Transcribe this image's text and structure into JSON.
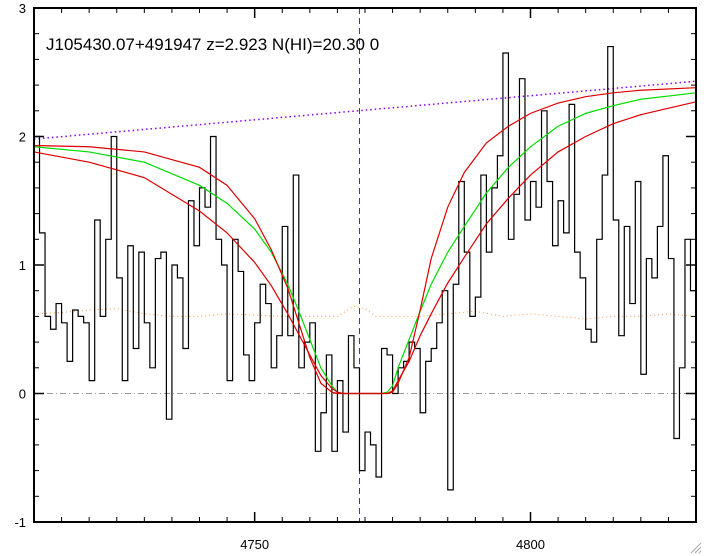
{
  "chart_data": {
    "type": "line",
    "title": "J105430.07+491947 z=2.923 N(HI)=20.30 0",
    "xlabel": "",
    "ylabel": "",
    "xlim": [
      4710,
      4830
    ],
    "ylim": [
      -1,
      3
    ],
    "x_ticks": [
      4750,
      4800
    ],
    "y_ticks": [
      -1,
      0,
      1,
      2,
      3
    ],
    "grid": false,
    "line_center": 4769,
    "colors": {
      "flux": "#000000",
      "model": "#00dd00",
      "model_bounds": "#dd0000",
      "continuum": "#8800ff",
      "error": "#ff9933",
      "zero": "#999999",
      "center": "#3333cc"
    },
    "series": [
      {
        "style": "histogram",
        "x": [
          4710,
          4711,
          4712,
          4713,
          4714,
          4715,
          4716,
          4717,
          4718,
          4719,
          4720,
          4721,
          4722,
          4723,
          4724,
          4725,
          4726,
          4727,
          4728,
          4729,
          4730,
          4731,
          4732,
          4733,
          4734,
          4735,
          4736,
          4737,
          4738,
          4739,
          4740,
          4741,
          4742,
          4743,
          4744,
          4745,
          4746,
          4747,
          4748,
          4749,
          4750,
          4751,
          4752,
          4753,
          4754,
          4755,
          4756,
          4757,
          4758,
          4759,
          4760,
          4761,
          4762,
          4763,
          4764,
          4765,
          4766,
          4767,
          4768,
          4769,
          4770,
          4771,
          4772,
          4773,
          4774,
          4775,
          4776,
          4777,
          4778,
          4779,
          4780,
          4781,
          4782,
          4783,
          4784,
          4785,
          4786,
          4787,
          4788,
          4789,
          4790,
          4791,
          4792,
          4793,
          4794,
          4795,
          4796,
          4797,
          4798,
          4799,
          4800,
          4801,
          4802,
          4803,
          4804,
          4805,
          4806,
          4807,
          4808,
          4809,
          4810,
          4811,
          4812,
          4813,
          4814,
          4815,
          4816,
          4817,
          4818,
          4819,
          4820,
          4821,
          4822,
          4823,
          4824,
          4825,
          4826,
          4827,
          4828,
          4829
        ],
        "y": [
          2.0,
          1.25,
          0.6,
          0.5,
          0.7,
          0.55,
          0.25,
          0.65,
          0.6,
          0.55,
          0.1,
          1.35,
          0.6,
          1.2,
          2.0,
          0.9,
          0.1,
          1.15,
          0.35,
          1.1,
          0.55,
          0.2,
          1.05,
          1.1,
          -0.2,
          1.0,
          0.9,
          0.35,
          1.5,
          1.15,
          1.6,
          1.45,
          2.0,
          1.2,
          1.0,
          0.1,
          1.2,
          0.95,
          0.3,
          0.1,
          0.55,
          0.85,
          0.7,
          0.2,
          0.45,
          1.3,
          0.45,
          1.7,
          0.2,
          0.4,
          0.55,
          -0.45,
          -0.15,
          0.3,
          -0.45,
          0.1,
          -0.3,
          0.45,
          0.2,
          -0.6,
          -0.3,
          -0.4,
          -0.65,
          0.35,
          0.3,
          0.0,
          0.2,
          0.25,
          0.4,
          0.35,
          -0.15,
          0.25,
          0.35,
          0.55,
          0.8,
          -0.75,
          0.85,
          1.65,
          1.1,
          0.6,
          0.75,
          1.7,
          1.1,
          1.6,
          1.85,
          2.65,
          1.2,
          1.55,
          2.45,
          1.35,
          1.65,
          1.45,
          2.2,
          1.65,
          1.15,
          1.5,
          1.25,
          2.25,
          1.1,
          0.9,
          0.5,
          0.4,
          1.2,
          1.7,
          2.7,
          1.35,
          0.45,
          1.3,
          0.7,
          1.65,
          0.15,
          1.05,
          0.9,
          1.3,
          1.85,
          1.05,
          -0.35,
          0.2,
          1.2,
          0.8
        ]
      },
      {
        "style": "line",
        "x": [
          4710,
          4720,
          4730,
          4740,
          4745,
          4750,
          4753,
          4756,
          4758,
          4760,
          4762,
          4764,
          4765,
          4766,
          4767,
          4768,
          4769,
          4770,
          4771,
          4772,
          4773,
          4774,
          4775,
          4776,
          4778,
          4780,
          4782,
          4785,
          4788,
          4792,
          4796,
          4800,
          4805,
          4810,
          4815,
          4820,
          4830
        ],
        "y": [
          1.92,
          1.88,
          1.8,
          1.62,
          1.48,
          1.28,
          1.1,
          0.85,
          0.64,
          0.42,
          0.2,
          0.06,
          0.01,
          0.0,
          0.0,
          0.0,
          0.0,
          0.0,
          0.0,
          0.0,
          0.0,
          0.01,
          0.06,
          0.2,
          0.42,
          0.64,
          0.85,
          1.1,
          1.3,
          1.56,
          1.76,
          1.92,
          2.08,
          2.18,
          2.24,
          2.29,
          2.34
        ]
      },
      {
        "style": "line",
        "x": [
          4710,
          4720,
          4730,
          4740,
          4745,
          4750,
          4753,
          4756,
          4758,
          4760,
          4762,
          4764,
          4765,
          4766,
          4767,
          4768,
          4769,
          4770,
          4771,
          4772,
          4773,
          4774,
          4775,
          4776,
          4778,
          4780,
          4782,
          4785,
          4788,
          4792,
          4796,
          4800,
          4805,
          4810,
          4815,
          4820,
          4830
        ],
        "y": [
          1.93,
          1.92,
          1.88,
          1.76,
          1.62,
          1.36,
          1.12,
          0.82,
          0.55,
          0.28,
          0.08,
          0.01,
          0.0,
          0.0,
          0.0,
          0.0,
          0.0,
          0.0,
          0.0,
          0.0,
          0.0,
          0.0,
          0.01,
          0.08,
          0.28,
          0.65,
          1.05,
          1.45,
          1.72,
          1.95,
          2.08,
          2.18,
          2.26,
          2.31,
          2.34,
          2.36,
          2.38
        ]
      },
      {
        "style": "line",
        "x": [
          4710,
          4720,
          4730,
          4740,
          4745,
          4750,
          4753,
          4756,
          4758,
          4760,
          4762,
          4764,
          4765,
          4766,
          4767,
          4768,
          4769,
          4770,
          4771,
          4772,
          4773,
          4774,
          4775,
          4776,
          4778,
          4780,
          4782,
          4785,
          4788,
          4792,
          4796,
          4800,
          4805,
          4810,
          4815,
          4820,
          4830
        ],
        "y": [
          1.88,
          1.8,
          1.68,
          1.42,
          1.25,
          1.02,
          0.84,
          0.62,
          0.46,
          0.3,
          0.14,
          0.04,
          0.01,
          0.0,
          0.0,
          0.0,
          0.0,
          0.0,
          0.0,
          0.0,
          0.0,
          0.0,
          0.02,
          0.1,
          0.25,
          0.45,
          0.62,
          0.86,
          1.06,
          1.32,
          1.52,
          1.7,
          1.88,
          2.0,
          2.1,
          2.17,
          2.27
        ]
      },
      {
        "style": "dotted",
        "x": [
          4710,
          4830
        ],
        "y": [
          1.98,
          2.43
        ]
      },
      {
        "style": "dotted",
        "x": [
          4710,
          4715,
          4720,
          4725,
          4730,
          4735,
          4740,
          4745,
          4750,
          4755,
          4760,
          4765,
          4768,
          4770,
          4772,
          4775,
          4780,
          4785,
          4790,
          4795,
          4800,
          4805,
          4810,
          4815,
          4820,
          4825,
          4830
        ],
        "y": [
          0.62,
          0.63,
          0.65,
          0.66,
          0.62,
          0.6,
          0.6,
          0.62,
          0.61,
          0.6,
          0.6,
          0.6,
          0.68,
          0.66,
          0.6,
          0.6,
          0.6,
          0.62,
          0.64,
          0.6,
          0.62,
          0.6,
          0.58,
          0.6,
          0.6,
          0.62,
          0.6
        ]
      }
    ]
  }
}
